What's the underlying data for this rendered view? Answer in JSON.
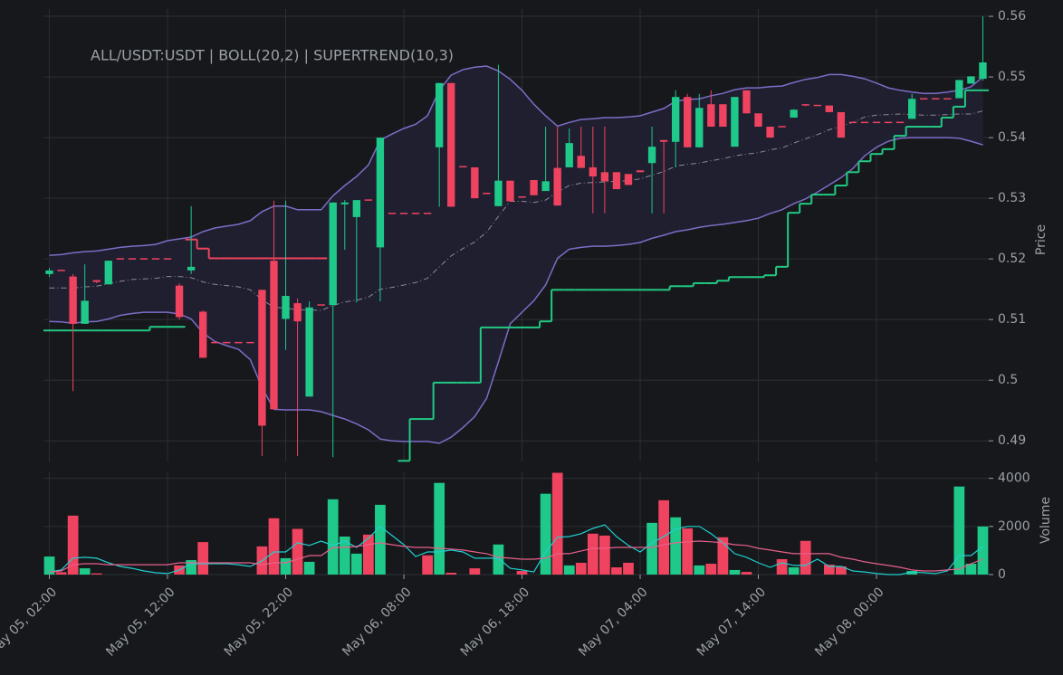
{
  "chart_data": {
    "type": "candlestick",
    "title": "ALL/USDT:USDT | BOLL(20,2) | SUPERTREND(10,3)",
    "ylabel": "Price",
    "grid": true,
    "up_color": "#1fc98a",
    "down_color": "#f0435f",
    "band_fill": "#1f1f30",
    "categories": [
      "May 05, 02:00",
      null,
      null,
      null,
      null,
      null,
      null,
      null,
      null,
      null,
      "May 05, 12:00",
      null,
      null,
      null,
      null,
      null,
      null,
      null,
      null,
      null,
      "May 05, 22:00",
      null,
      null,
      null,
      null,
      null,
      null,
      null,
      null,
      null,
      "May 06, 08:00",
      null,
      null,
      null,
      null,
      null,
      null,
      null,
      null,
      null,
      "May 06, 18:00",
      null,
      null,
      null,
      null,
      null,
      null,
      null,
      null,
      null,
      "May 07, 04:00",
      null,
      null,
      null,
      null,
      null,
      null,
      null,
      null,
      null,
      "May 07, 14:00",
      null,
      null,
      null,
      null,
      null,
      null,
      null,
      null,
      null,
      "May 08, 00:00",
      null,
      null,
      null,
      null,
      null,
      null,
      null,
      null,
      null
    ],
    "open": [
      0.5175,
      0.5181,
      0.5171,
      0.5093,
      0.5165,
      0.5158,
      0.52,
      0.52,
      0.52,
      0.52,
      0.52,
      0.5156,
      0.5181,
      0.5113,
      0.5062,
      0.5062,
      0.5062,
      0.5062,
      0.5149,
      0.5197,
      0.5101,
      0.5127,
      0.4973,
      0.5124,
      0.5124,
      0.529,
      0.5269,
      0.5297,
      0.5219,
      0.5275,
      0.5275,
      0.5275,
      0.5275,
      0.5384,
      0.549,
      0.5352,
      0.5351,
      0.5308,
      0.5287,
      0.5329,
      0.5302,
      0.533,
      0.5312,
      0.535,
      0.5351,
      0.537,
      0.5351,
      0.5343,
      0.5343,
      0.534,
      0.5346,
      0.5358,
      0.5396,
      0.5393,
      0.5467,
      0.5384,
      0.5455,
      0.5455,
      0.5385,
      0.5478,
      0.544,
      0.5418,
      0.5418,
      0.5433,
      0.5454,
      0.5453,
      0.5453,
      0.5442,
      0.5425,
      0.5425,
      0.5425,
      0.5425,
      0.5425,
      0.5431,
      0.5464,
      0.5464,
      0.5464,
      0.5465,
      0.5489,
      0.5497
    ],
    "high": [
      0.5185,
      0.5181,
      0.5175,
      0.5191,
      0.5165,
      0.5197,
      0.52,
      0.52,
      0.52,
      0.52,
      0.52,
      0.516,
      0.5287,
      0.5115,
      0.5062,
      0.5062,
      0.5062,
      0.5062,
      0.5149,
      0.5296,
      0.5296,
      0.5135,
      0.513,
      0.5124,
      0.5293,
      0.5297,
      0.5297,
      0.5297,
      0.54,
      0.5275,
      0.5275,
      0.5275,
      0.5275,
      0.549,
      0.549,
      0.5352,
      0.5351,
      0.5308,
      0.552,
      0.5329,
      0.5302,
      0.533,
      0.5418,
      0.5418,
      0.5415,
      0.5418,
      0.5418,
      0.5418,
      0.5343,
      0.534,
      0.5346,
      0.5418,
      0.5396,
      0.5478,
      0.5472,
      0.5472,
      0.5478,
      0.5455,
      0.5467,
      0.5478,
      0.544,
      0.5418,
      0.5418,
      0.5447,
      0.5454,
      0.5453,
      0.5453,
      0.5442,
      0.5425,
      0.5425,
      0.5425,
      0.5425,
      0.5425,
      0.5472,
      0.5464,
      0.5464,
      0.5464,
      0.5495,
      0.5501,
      0.56
    ],
    "low": [
      0.517,
      0.5181,
      0.4982,
      0.5093,
      0.516,
      0.5158,
      0.52,
      0.52,
      0.52,
      0.52,
      0.52,
      0.51,
      0.5175,
      0.5037,
      0.5062,
      0.5062,
      0.5062,
      0.5062,
      0.4875,
      0.4952,
      0.505,
      0.4875,
      0.4973,
      0.5124,
      0.4873,
      0.5215,
      0.5128,
      0.5297,
      0.513,
      0.5275,
      0.5275,
      0.5275,
      0.5275,
      0.5286,
      0.5286,
      0.5352,
      0.53,
      0.5308,
      0.5287,
      0.5295,
      0.5302,
      0.5305,
      0.5312,
      0.5288,
      0.5351,
      0.535,
      0.5275,
      0.5275,
      0.5315,
      0.5322,
      0.5343,
      0.5275,
      0.5275,
      0.5351,
      0.5384,
      0.5384,
      0.5418,
      0.5418,
      0.5385,
      0.544,
      0.5418,
      0.54,
      0.5418,
      0.5433,
      0.5452,
      0.5453,
      0.5442,
      0.54,
      0.5425,
      0.5425,
      0.5425,
      0.5425,
      0.5425,
      0.5431,
      0.5464,
      0.5464,
      0.5464,
      0.5465,
      0.5489,
      0.5494
    ],
    "close": [
      0.5181,
      0.5181,
      0.5093,
      0.5131,
      0.5162,
      0.5197,
      0.52,
      0.52,
      0.52,
      0.52,
      0.52,
      0.5104,
      0.5187,
      0.5037,
      0.5062,
      0.5062,
      0.5062,
      0.5062,
      0.4925,
      0.4952,
      0.5139,
      0.5097,
      0.512,
      0.5124,
      0.5293,
      0.5293,
      0.5297,
      0.5297,
      0.54,
      0.5275,
      0.5275,
      0.5275,
      0.5275,
      0.549,
      0.5286,
      0.5352,
      0.53,
      0.5308,
      0.5329,
      0.5295,
      0.5302,
      0.5305,
      0.5328,
      0.5288,
      0.5391,
      0.535,
      0.5336,
      0.5328,
      0.5315,
      0.5322,
      0.5343,
      0.5385,
      0.5393,
      0.5467,
      0.5384,
      0.5449,
      0.5418,
      0.5418,
      0.5467,
      0.544,
      0.5418,
      0.54,
      0.5418,
      0.5446,
      0.5452,
      0.5453,
      0.5442,
      0.54,
      0.5425,
      0.5425,
      0.5425,
      0.5425,
      0.5425,
      0.5464,
      0.5464,
      0.5464,
      0.5464,
      0.5495,
      0.5501,
      0.5524
    ],
    "ylim": [
      0.4866,
      0.5612
    ],
    "yticks": [
      0.49,
      0.5,
      0.51,
      0.52,
      0.53,
      0.54,
      0.55,
      0.56
    ],
    "overlays": [
      {
        "color": "#7e6cc6",
        "dash": false,
        "values": [
          0.5206,
          0.5207,
          0.521,
          0.5212,
          0.5213,
          0.5216,
          0.5219,
          0.5221,
          0.5222,
          0.5224,
          0.523,
          0.5233,
          0.5236,
          0.5245,
          0.5251,
          0.5254,
          0.5257,
          0.5263,
          0.5278,
          0.5287,
          0.5287,
          0.5281,
          0.5281,
          0.5281,
          0.5304,
          0.5321,
          0.5336,
          0.5355,
          0.5396,
          0.5406,
          0.5415,
          0.5422,
          0.5436,
          0.5478,
          0.5503,
          0.5512,
          0.5516,
          0.5518,
          0.551,
          0.5496,
          0.5478,
          0.5455,
          0.5436,
          0.5419,
          0.5425,
          0.543,
          0.5431,
          0.5433,
          0.5433,
          0.5434,
          0.5436,
          0.5442,
          0.5448,
          0.546,
          0.5463,
          0.5464,
          0.5469,
          0.5473,
          0.5479,
          0.5482,
          0.5482,
          0.5484,
          0.5485,
          0.5491,
          0.5496,
          0.5499,
          0.5504,
          0.5504,
          0.5501,
          0.5497,
          0.549,
          0.5482,
          0.5478,
          0.5475,
          0.5473,
          0.5473,
          0.5475,
          0.5478,
          0.5484,
          0.55
        ]
      },
      {
        "color": "#8a8a96",
        "dash": true,
        "values": [
          0.5152,
          0.5152,
          0.5152,
          0.5154,
          0.5155,
          0.5159,
          0.5163,
          0.5166,
          0.5167,
          0.5168,
          0.5171,
          0.5171,
          0.5169,
          0.5162,
          0.5158,
          0.5156,
          0.5154,
          0.5149,
          0.5133,
          0.512,
          0.5119,
          0.5116,
          0.5116,
          0.5115,
          0.5123,
          0.5129,
          0.5132,
          0.5137,
          0.515,
          0.5153,
          0.5157,
          0.5161,
          0.5168,
          0.5187,
          0.5205,
          0.5217,
          0.5228,
          0.5244,
          0.527,
          0.5295,
          0.5295,
          0.5293,
          0.5297,
          0.531,
          0.5321,
          0.5325,
          0.5326,
          0.5327,
          0.5328,
          0.5329,
          0.5332,
          0.5338,
          0.5344,
          0.5353,
          0.5356,
          0.5358,
          0.5362,
          0.5365,
          0.537,
          0.5373,
          0.5375,
          0.538,
          0.5383,
          0.5391,
          0.5398,
          0.5405,
          0.5413,
          0.5419,
          0.5425,
          0.5434,
          0.5437,
          0.5438,
          0.5439,
          0.5438,
          0.5437,
          0.5437,
          0.5438,
          0.5439,
          0.5439,
          0.5444
        ]
      },
      {
        "color": "#7e6cc6",
        "dash": false,
        "values": [
          0.5097,
          0.5096,
          0.5094,
          0.5096,
          0.5097,
          0.5101,
          0.5107,
          0.511,
          0.5112,
          0.5112,
          0.5112,
          0.5109,
          0.5101,
          0.5078,
          0.5064,
          0.5057,
          0.5051,
          0.5034,
          0.4988,
          0.4952,
          0.4951,
          0.4951,
          0.4951,
          0.4948,
          0.4942,
          0.4936,
          0.4928,
          0.4918,
          0.4903,
          0.49,
          0.4899,
          0.4899,
          0.4899,
          0.4896,
          0.4906,
          0.4922,
          0.494,
          0.497,
          0.503,
          0.5093,
          0.5112,
          0.5131,
          0.5157,
          0.5201,
          0.5216,
          0.5219,
          0.5221,
          0.5221,
          0.5222,
          0.5224,
          0.5227,
          0.5234,
          0.5239,
          0.5245,
          0.5248,
          0.5252,
          0.5255,
          0.5257,
          0.526,
          0.5263,
          0.5267,
          0.5275,
          0.5281,
          0.5291,
          0.5299,
          0.531,
          0.5322,
          0.5334,
          0.5349,
          0.537,
          0.5384,
          0.5394,
          0.5399,
          0.54,
          0.54,
          0.54,
          0.54,
          0.5399,
          0.5394,
          0.5388
        ]
      }
    ],
    "supertrend": [
      {
        "color": "#22c983",
        "values": [
          0.5082,
          0.5082,
          0.5082,
          0.5082,
          0.5082,
          0.5082,
          0.5082,
          0.5082,
          0.5082,
          0.5088,
          0.5088,
          0.5088,
          null,
          null,
          null,
          null,
          null,
          null,
          null,
          null,
          null,
          null,
          null,
          null,
          null,
          null,
          null,
          null,
          null,
          null,
          0.4867,
          0.4936,
          0.4936,
          0.4996,
          0.4996,
          0.4996,
          0.4996,
          0.5087,
          0.5087,
          0.5087,
          0.5087,
          0.5087,
          0.5097,
          0.5149,
          0.5149,
          0.5149,
          0.5149,
          0.5149,
          0.5149,
          0.5149,
          0.5149,
          0.5149,
          0.5149,
          0.5155,
          0.5155,
          0.516,
          0.516,
          0.5164,
          0.517,
          0.517,
          0.517,
          0.5173,
          0.5187,
          0.5276,
          0.5291,
          0.5306,
          0.5306,
          0.5321,
          0.5343,
          0.5361,
          0.5373,
          0.5381,
          0.5403,
          0.5418,
          0.5418,
          0.5418,
          0.5433,
          0.5451,
          0.5478,
          0.5478
        ]
      },
      {
        "color": "#f0435f",
        "values": [
          null,
          null,
          null,
          null,
          null,
          null,
          null,
          null,
          null,
          null,
          null,
          null,
          0.5232,
          0.5217,
          0.5201,
          0.5201,
          0.5201,
          0.5201,
          0.5201,
          0.5201,
          0.5201,
          0.5201,
          0.5201,
          0.5201,
          null,
          null,
          null,
          null,
          null,
          null,
          null,
          null,
          null,
          null,
          null,
          null,
          null,
          null,
          null,
          null,
          null,
          null,
          null,
          null,
          null,
          null,
          null,
          null,
          null,
          null,
          null,
          null,
          null,
          null,
          null,
          null,
          null,
          null,
          null,
          null,
          null,
          null,
          null,
          null,
          null,
          null,
          null,
          null,
          null,
          null,
          null,
          null,
          null,
          null,
          null,
          null,
          null,
          null,
          null,
          null
        ]
      }
    ],
    "volume": {
      "ylabel": "Volume",
      "ylim": [
        0,
        4250
      ],
      "yticks": [
        0,
        2000,
        4000
      ],
      "values": [
        750,
        100,
        2450,
        260,
        50,
        0,
        0,
        0,
        0,
        0,
        0,
        380,
        600,
        1350,
        0,
        0,
        0,
        0,
        1170,
        2340,
        680,
        1900,
        530,
        0,
        3130,
        1580,
        870,
        1660,
        2900,
        0,
        0,
        0,
        800,
        3810,
        75,
        0,
        260,
        0,
        1250,
        0,
        150,
        0,
        3360,
        4230,
        380,
        490,
        1700,
        1620,
        300,
        490,
        0,
        2150,
        3090,
        2380,
        1920,
        380,
        450,
        1550,
        190,
        110,
        0,
        0,
        640,
        300,
        1400,
        0,
        410,
        340,
        0,
        0,
        0,
        0,
        0,
        150,
        0,
        0,
        0,
        3660,
        450,
        2000
      ],
      "lines": [
        {
          "color": "#20d0d0",
          "values": [
            110,
            190,
            680,
            720,
            680,
            490,
            340,
            260,
            150,
            75,
            40,
            190,
            450,
            450,
            450,
            450,
            410,
            340,
            570,
            940,
            940,
            1320,
            1210,
            1390,
            1210,
            1390,
            1130,
            1510,
            2000,
            1620,
            1240,
            750,
            940,
            940,
            1020,
            940,
            680,
            680,
            680,
            260,
            190,
            110,
            940,
            1550,
            1580,
            1700,
            1920,
            2070,
            1580,
            1210,
            940,
            1320,
            1580,
            1890,
            2000,
            2000,
            1700,
            1320,
            870,
            720,
            490,
            300,
            490,
            380,
            380,
            640,
            340,
            340,
            150,
            110,
            40,
            0,
            0,
            110,
            75,
            40,
            150,
            790,
            790,
            1170
          ]
        },
        {
          "color": "#e8608a",
          "values": [
            110,
            150,
            410,
            450,
            450,
            410,
            410,
            410,
            410,
            410,
            410,
            490,
            490,
            490,
            490,
            490,
            490,
            490,
            410,
            490,
            490,
            640,
            790,
            790,
            1130,
            1130,
            1170,
            1240,
            1320,
            1240,
            1170,
            1130,
            1130,
            1090,
            1060,
            1020,
            940,
            870,
            720,
            680,
            640,
            640,
            680,
            870,
            870,
            980,
            1090,
            1090,
            1130,
            1130,
            1130,
            1130,
            1240,
            1320,
            1360,
            1390,
            1360,
            1320,
            1240,
            1210,
            1090,
            1020,
            940,
            870,
            870,
            870,
            870,
            720,
            640,
            530,
            450,
            380,
            300,
            190,
            150,
            150,
            190,
            230,
            450,
            640
          ]
        }
      ]
    }
  }
}
